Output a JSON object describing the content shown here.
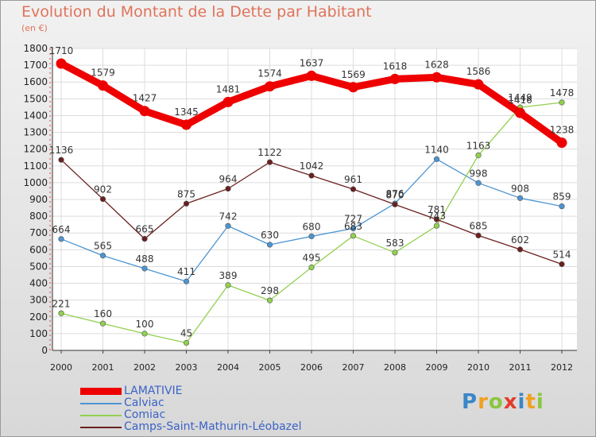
{
  "chart_data": {
    "type": "line",
    "title": "Evolution du Montant de la Dette par Habitant",
    "subtitle": "(en €)",
    "xlabel": "",
    "ylabel": "",
    "categories": [
      "2000",
      "2001",
      "2002",
      "2003",
      "2004",
      "2005",
      "2006",
      "2007",
      "2008",
      "2009",
      "2010",
      "2011",
      "2012"
    ],
    "ylim": [
      0,
      1800
    ],
    "yticks": [
      0,
      100,
      200,
      300,
      400,
      500,
      600,
      700,
      800,
      900,
      1000,
      1100,
      1200,
      1300,
      1400,
      1500,
      1600,
      1700,
      1800
    ],
    "grid": true,
    "legend_position": "bottom-left",
    "series": [
      {
        "name": "LAMATIVIE",
        "color": "#ee0000",
        "values": [
          1710,
          1579,
          1427,
          1345,
          1481,
          1574,
          1637,
          1569,
          1618,
          1628,
          1586,
          1416,
          1238
        ]
      },
      {
        "name": "Calviac",
        "color": "#4d95d2",
        "values": [
          664,
          565,
          488,
          411,
          742,
          630,
          680,
          727,
          876,
          1140,
          998,
          908,
          859
        ]
      },
      {
        "name": "Comiac",
        "color": "#92d050",
        "values": [
          221,
          160,
          100,
          45,
          389,
          298,
          495,
          683,
          583,
          743,
          1163,
          1449,
          1478
        ]
      },
      {
        "name": "Camps-Saint-Mathurin-Léobazel",
        "color": "#6b1f1f",
        "values": [
          1136,
          902,
          665,
          875,
          964,
          1122,
          1042,
          961,
          870,
          781,
          685,
          602,
          514
        ]
      }
    ]
  },
  "logo": {
    "letters": [
      {
        "char": "P",
        "color": "#3a86c8"
      },
      {
        "char": "r",
        "color": "#f0a020"
      },
      {
        "char": "o",
        "color": "#8cc63f"
      },
      {
        "char": "x",
        "color": "#e53a2a"
      },
      {
        "char": "i",
        "color": "#3a86c8"
      },
      {
        "char": "t",
        "color": "#f0a020"
      },
      {
        "char": "i",
        "color": "#8cc63f"
      }
    ]
  }
}
